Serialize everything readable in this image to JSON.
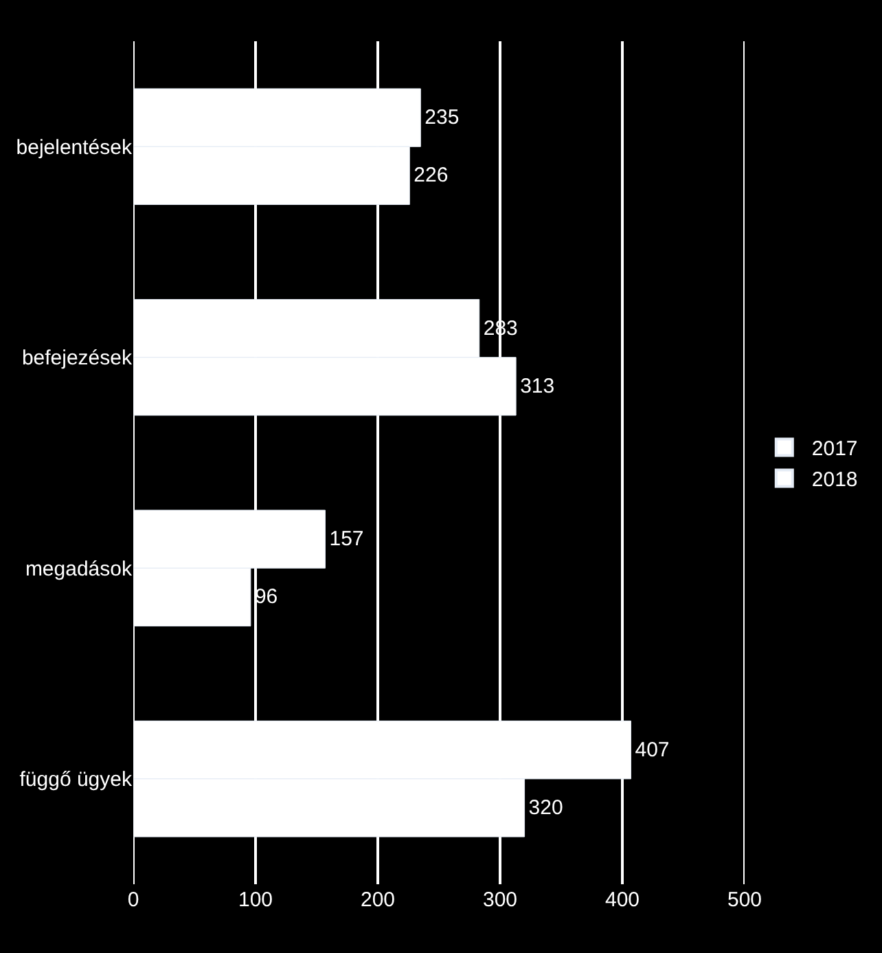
{
  "chart_data": {
    "type": "bar",
    "orientation": "horizontal",
    "categories": [
      "bejelentések",
      "befejezések",
      "megadások",
      "függő ügyek"
    ],
    "series": [
      {
        "name": "2017",
        "color": "#ffffff",
        "values": [
          235,
          283,
          157,
          407
        ]
      },
      {
        "name": "2018",
        "color": "#ffffff",
        "values": [
          226,
          313,
          96,
          320
        ]
      }
    ],
    "xlim": [
      0,
      500
    ],
    "xticks": [
      0,
      100,
      200,
      300,
      400,
      500
    ],
    "grid": "x",
    "legend": "right",
    "data_labels": true
  }
}
